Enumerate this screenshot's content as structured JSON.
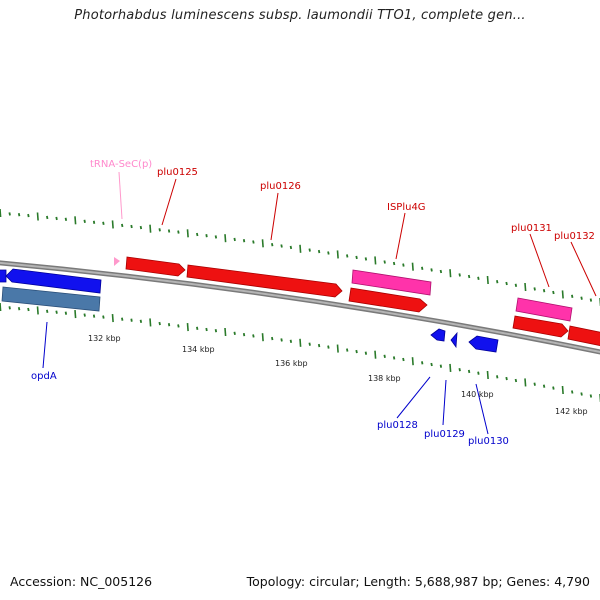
{
  "title": "Photorhabdus luminescens subsp. laumondii TTO1, complete gen...",
  "accession": "Accession: NC_005126",
  "summary": "Topology: circular; Length: 5,688,987 bp; Genes: 4,790",
  "colors": {
    "forward_gene": "#ee1111",
    "mobile_element": "#ff33aa",
    "reverse_gene": "#1111ee",
    "reverse_other": "#4a78a8",
    "trna": "#ff88cc",
    "backbone": "#888888",
    "tick": "#2a7a2a"
  },
  "kbp_ticks": [
    "132 kbp",
    "134 kbp",
    "136 kbp",
    "138 kbp",
    "140 kbp",
    "142 kbp"
  ],
  "gene_labels": {
    "trna": "tRNA-SeC(p)",
    "plu0125": "plu0125",
    "plu0126": "plu0126",
    "isplu4g": "ISPlu4G",
    "plu0131": "plu0131",
    "plu0132": "plu0132",
    "opda": "opdA",
    "plu0128": "plu0128",
    "plu0129": "plu0129",
    "plu0130": "plu0130"
  }
}
